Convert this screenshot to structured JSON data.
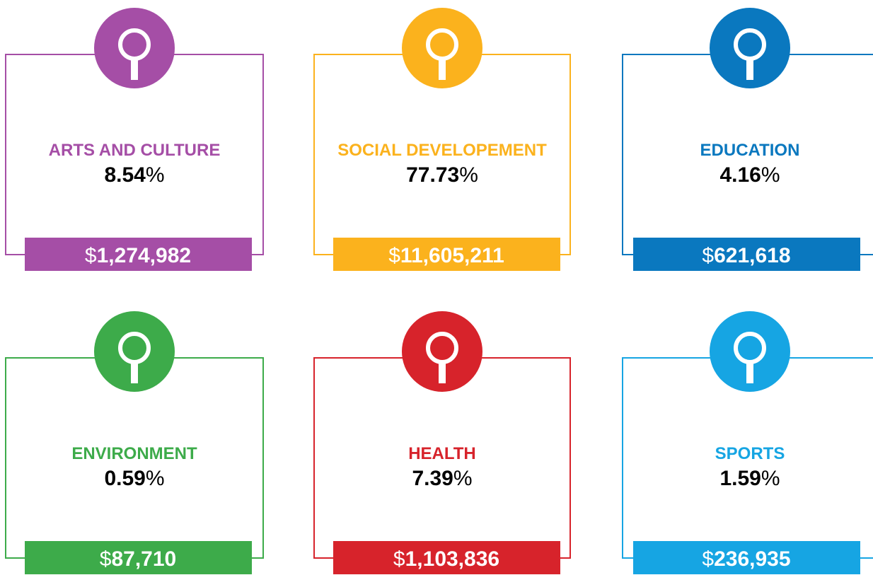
{
  "cards": [
    {
      "title": "ARTS AND CULTURE",
      "percent": "8.54",
      "percent_unit": "%",
      "currency": "$",
      "amount": "1,274,982",
      "color": "#a54ea6"
    },
    {
      "title": "SOCIAL DEVELOPEMENT",
      "percent": "77.73",
      "percent_unit": "%",
      "currency": "$",
      "amount": "11,605,211",
      "color": "#fbb21d"
    },
    {
      "title": "EDUCATION",
      "percent": "4.16",
      "percent_unit": "%",
      "currency": "$",
      "amount": "621,618",
      "color": "#0a78bf"
    },
    {
      "title": "ENVIRONMENT",
      "percent": "0.59",
      "percent_unit": "%",
      "currency": "$",
      "amount": "87,710",
      "color": "#3dab4a"
    },
    {
      "title": "HEALTH",
      "percent": "7.39",
      "percent_unit": "%",
      "currency": "$",
      "amount": "1,103,836",
      "color": "#d7232b"
    },
    {
      "title": "SPORTS",
      "percent": "1.59",
      "percent_unit": "%",
      "currency": "$",
      "amount": "236,935",
      "color": "#16a5e3"
    }
  ]
}
